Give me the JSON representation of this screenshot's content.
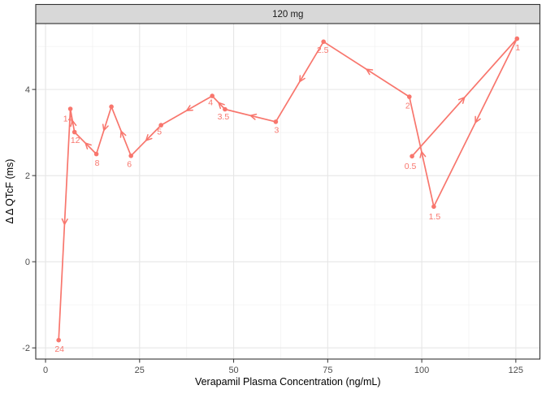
{
  "chart_data": {
    "type": "line",
    "subtype": "concentration-effect-hysteresis-loop",
    "facet_label": "120 mg",
    "legend": "none",
    "grid": true,
    "x_axis": {
      "title": "Verapamil Plasma Concentration (ng/mL)",
      "ticks": [
        0,
        25,
        50,
        75,
        100,
        125
      ],
      "minor_ticks": [
        12.5,
        37.5,
        62.5,
        87.5,
        112.5
      ],
      "domain": [
        -2.6,
        131.4
      ]
    },
    "y_axis": {
      "title": "Δ Δ QTcF (ms)",
      "ticks": [
        -2,
        0,
        2,
        4
      ],
      "minor_ticks": [
        -1,
        1,
        3,
        5
      ],
      "domain": [
        -2.26,
        5.53
      ]
    },
    "colors": {
      "line": "#F8766D",
      "grid_major": "#E6E6E6",
      "grid_minor": "#F1F1F1",
      "strip_bg": "#D8D8D8",
      "axis": "#333333",
      "tick_label": "#4D4D4D"
    },
    "series": [
      {
        "name": "verapamil-120mg-loop",
        "color": "#F8766D",
        "arrows": true,
        "points": [
          {
            "time": "0.5",
            "x": 97.4,
            "y": 2.45,
            "dx": -2,
            "dy": 12
          },
          {
            "time": "1",
            "x": 125.3,
            "y": 5.18,
            "dx": 1,
            "dy": 11
          },
          {
            "time": "1.5",
            "x": 103.2,
            "y": 1.28,
            "dx": 1,
            "dy": 12
          },
          {
            "time": "2",
            "x": 96.7,
            "y": 3.83,
            "dx": -2,
            "dy": 11
          },
          {
            "time": "2.5",
            "x": 73.9,
            "y": 5.11,
            "dx": -1,
            "dy": 10
          },
          {
            "time": "3",
            "x": 61.2,
            "y": 3.25,
            "dx": 1,
            "dy": 10
          },
          {
            "time": "3.5",
            "x": 47.7,
            "y": 3.54,
            "dx": -2,
            "dy": 9
          },
          {
            "time": "4",
            "x": 44.3,
            "y": 3.85,
            "dx": -2,
            "dy": 8
          },
          {
            "time": "5",
            "x": 30.7,
            "y": 3.17,
            "dx": -2,
            "dy": 8
          },
          {
            "time": "6",
            "x": 22.7,
            "y": 2.46,
            "dx": -2,
            "dy": 10
          },
          {
            "time": "",
            "x": 17.5,
            "y": 3.6,
            "dx": 0,
            "dy": 10
          },
          {
            "time": "8",
            "x": 13.5,
            "y": 2.5,
            "dx": 1,
            "dy": 11
          },
          {
            "time": "12",
            "x": 7.7,
            "y": 3.01,
            "dx": 1,
            "dy": 10
          },
          {
            "time": "14",
            "x": 6.6,
            "y": 3.55,
            "dx": -3,
            "dy": 12
          },
          {
            "time": "24",
            "x": 3.5,
            "y": -1.82,
            "dx": 1,
            "dy": 11
          }
        ]
      }
    ]
  }
}
